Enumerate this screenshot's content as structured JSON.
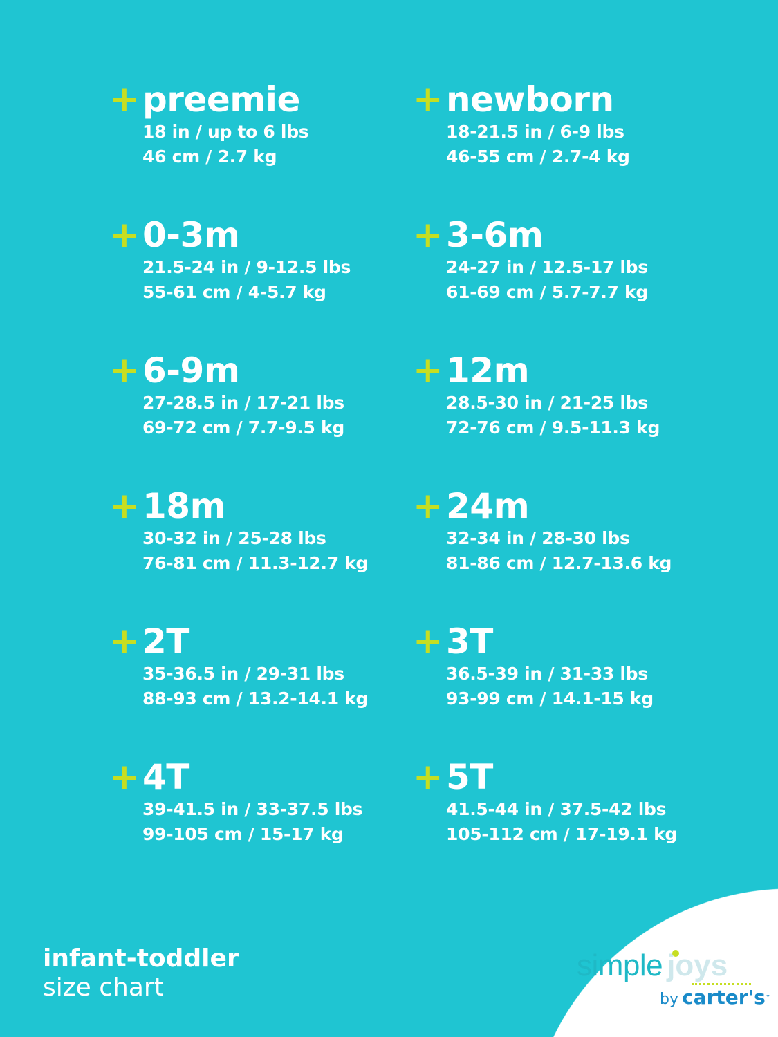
{
  "colors": {
    "background": "#1fc5d2",
    "plus": "#c6de22",
    "text": "#ffffff"
  },
  "sizes": [
    {
      "title": "preemie",
      "line1": "18 in / up to 6 lbs",
      "line2": "46 cm / 2.7 kg"
    },
    {
      "title": "newborn",
      "line1": "18-21.5 in / 6-9 lbs",
      "line2": "46-55 cm / 2.7-4 kg"
    },
    {
      "title": "0-3m",
      "line1": "21.5-24 in / 9-12.5 lbs",
      "line2": "55-61 cm / 4-5.7 kg"
    },
    {
      "title": "3-6m",
      "line1": "24-27 in / 12.5-17 lbs",
      "line2": "61-69 cm / 5.7-7.7 kg"
    },
    {
      "title": "6-9m",
      "line1": "27-28.5 in / 17-21 lbs",
      "line2": "69-72 cm / 7.7-9.5 kg"
    },
    {
      "title": "12m",
      "line1": "28.5-30 in / 21-25 lbs",
      "line2": "72-76 cm / 9.5-11.3 kg"
    },
    {
      "title": "18m",
      "line1": "30-32 in / 25-28 lbs",
      "line2": "76-81 cm / 11.3-12.7 kg"
    },
    {
      "title": "24m",
      "line1": "32-34 in / 28-30 lbs",
      "line2": "81-86 cm / 12.7-13.6 kg"
    },
    {
      "title": "2T",
      "line1": "35-36.5 in / 29-31 lbs",
      "line2": "88-93 cm / 13.2-14.1 kg"
    },
    {
      "title": "3T",
      "line1": "36.5-39 in / 31-33 lbs",
      "line2": "93-99 cm / 14.1-15 kg"
    },
    {
      "title": "4T",
      "line1": "39-41.5 in / 33-37.5 lbs",
      "line2": "99-105 cm / 15-17 kg"
    },
    {
      "title": "5T",
      "line1": "41.5-44 in / 37.5-42 lbs",
      "line2": "105-112 cm / 17-19.1 kg"
    }
  ],
  "plus_symbol": "+",
  "footer": {
    "line1": "infant-toddler",
    "line2": "size chart"
  },
  "logo": {
    "simple": "simple",
    "joys": "joys",
    "by": "by",
    "brand": "carter's",
    "tm": "™"
  }
}
